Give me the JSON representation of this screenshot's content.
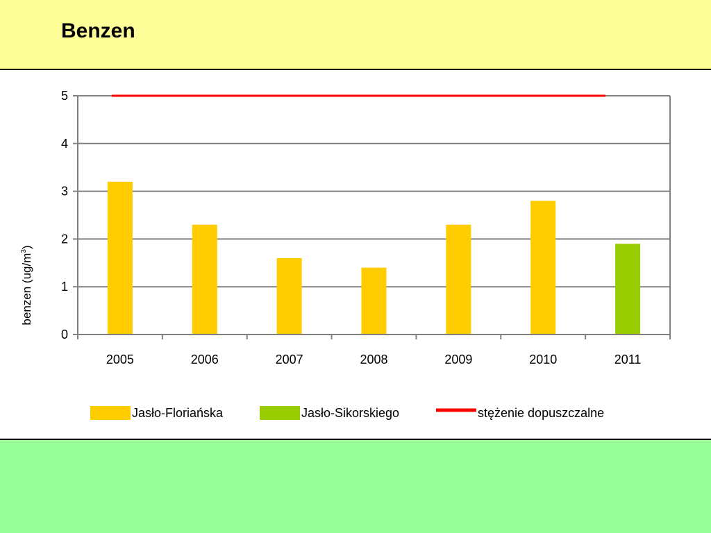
{
  "slide": {
    "title": "Benzen"
  },
  "colors": {
    "title_band": "#ffff99",
    "background": "#99ff99",
    "panel": "#ffffff",
    "series_florianska": "#ffcc00",
    "series_sikorskiego": "#99cc00",
    "limit_line": "#ff0000",
    "axis": "#808080"
  },
  "chart_data": {
    "type": "bar",
    "title": "",
    "xlabel": "",
    "ylabel_main": "benzen (ug/m",
    "ylabel_sup": "3",
    "ylabel_close": ")",
    "ylim": [
      0,
      5
    ],
    "yticks": [
      "0",
      "1",
      "2",
      "3",
      "4",
      "5"
    ],
    "categories": [
      "2005",
      "2006",
      "2007",
      "2008",
      "2009",
      "2010",
      "2011"
    ],
    "series": [
      {
        "name": "Jasło-Floriańska",
        "color": "#ffcc00",
        "values": [
          3.2,
          2.3,
          1.6,
          1.4,
          2.3,
          2.8,
          null
        ]
      },
      {
        "name": "Jasło-Sikorskiego",
        "color": "#99cc00",
        "values": [
          null,
          null,
          null,
          null,
          null,
          null,
          1.9
        ]
      }
    ],
    "limit": {
      "name": "stężenie dopuszczalne",
      "value": 5,
      "color": "#ff0000"
    },
    "grid": true,
    "legend_position": "bottom"
  }
}
